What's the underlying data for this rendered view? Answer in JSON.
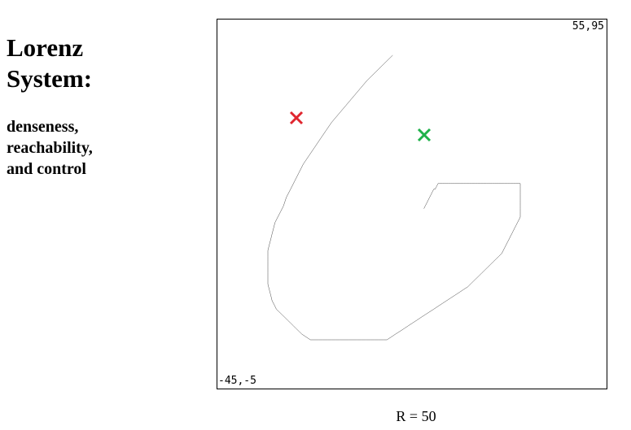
{
  "title": {
    "line1": "Lorenz",
    "line2": "System:"
  },
  "subtitle": {
    "line1": "denseness,",
    "line2": "reachability,",
    "line3": "and control"
  },
  "plot": {
    "corner_top_right": "55,95",
    "corner_bottom_left": "-45,-5",
    "caption": "R = 50",
    "trajectory_color": "#000000",
    "marker_start_color": "#e0262f",
    "marker_target_color": "#1fb24a"
  }
}
